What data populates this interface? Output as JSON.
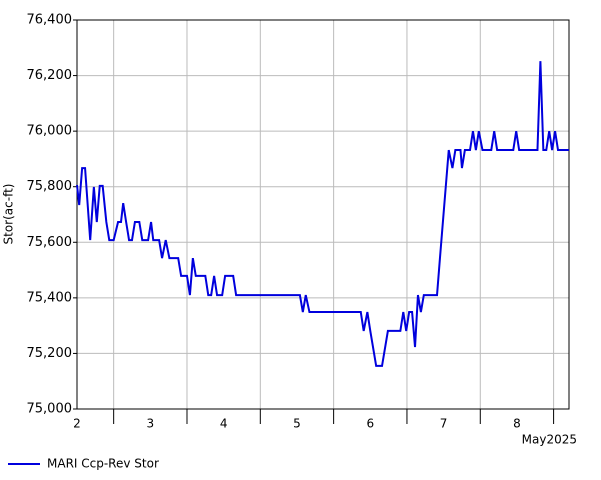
{
  "chart_data": {
    "type": "line",
    "y_label": "Stor(ac-ft)",
    "x_annotation": "May2025",
    "x": [
      2.0,
      2.03,
      2.07,
      2.11,
      2.18,
      2.23,
      2.27,
      2.31,
      2.35,
      2.4,
      2.44,
      2.5,
      2.56,
      2.6,
      2.63,
      2.67,
      2.71,
      2.75,
      2.79,
      2.85,
      2.89,
      2.97,
      3.01,
      3.04,
      3.12,
      3.16,
      3.21,
      3.26,
      3.38,
      3.42,
      3.5,
      3.54,
      3.58,
      3.62,
      3.75,
      3.79,
      3.83,
      3.87,
      3.91,
      3.98,
      4.02,
      4.13,
      4.17,
      5.04,
      5.08,
      5.12,
      5.17,
      5.87,
      5.91,
      5.96,
      6.0,
      6.08,
      6.16,
      6.24,
      6.28,
      6.41,
      6.45,
      6.49,
      6.53,
      6.57,
      6.61,
      6.65,
      6.69,
      6.73,
      6.91,
      6.95,
      7.07,
      7.12,
      7.16,
      7.23,
      7.25,
      7.29,
      7.36,
      7.4,
      7.44,
      7.48,
      7.53,
      7.65,
      7.69,
      7.73,
      7.95,
      7.99,
      8.03,
      8.28,
      8.32,
      8.36,
      8.4,
      8.44,
      8.48,
      8.52,
      8.56,
      8.71
    ],
    "series": [
      {
        "name": "MARI Ccp-Rev Stor",
        "color": "#0000dd",
        "values": [
          75806,
          75734,
          75867,
          75867,
          75608,
          75799,
          75673,
          75803,
          75803,
          75673,
          75608,
          75608,
          75673,
          75673,
          75741,
          75673,
          75608,
          75608,
          75673,
          75673,
          75608,
          75608,
          75673,
          75608,
          75608,
          75543,
          75608,
          75543,
          75543,
          75479,
          75479,
          75410,
          75543,
          75479,
          75479,
          75410,
          75410,
          75479,
          75410,
          75410,
          75479,
          75479,
          75410,
          75410,
          75349,
          75410,
          75349,
          75349,
          75281,
          75349,
          75281,
          75155,
          75155,
          75281,
          75281,
          75281,
          75349,
          75281,
          75349,
          75349,
          75223,
          75410,
          75349,
          75410,
          75410,
          75543,
          75932,
          75867,
          75932,
          75932,
          75867,
          75932,
          75932,
          76000,
          75932,
          76000,
          75932,
          75932,
          76000,
          75932,
          75932,
          76000,
          75932,
          75932,
          76252,
          75932,
          75932,
          76000,
          75932,
          76000,
          75932,
          75932
        ]
      }
    ],
    "xlim": [
      2,
      8.71
    ],
    "xticks": [
      2,
      3,
      4,
      5,
      6,
      7,
      8
    ],
    "xgrid_minor": [
      2.5,
      3.5,
      4.5,
      5.5,
      6.5,
      7.5,
      8.5
    ],
    "ylim": [
      75000,
      76400
    ],
    "yticks": [
      {
        "value": 75000,
        "label": "75,000"
      },
      {
        "value": 75200,
        "label": "75,200"
      },
      {
        "value": 75400,
        "label": "75,400"
      },
      {
        "value": 75600,
        "label": "75,600"
      },
      {
        "value": 75800,
        "label": "75,800"
      },
      {
        "value": 76000,
        "label": "76,000"
      },
      {
        "value": 76200,
        "label": "76,200"
      },
      {
        "value": 76400,
        "label": "76,400"
      }
    ],
    "grid": true,
    "legend": "bottom-left"
  }
}
